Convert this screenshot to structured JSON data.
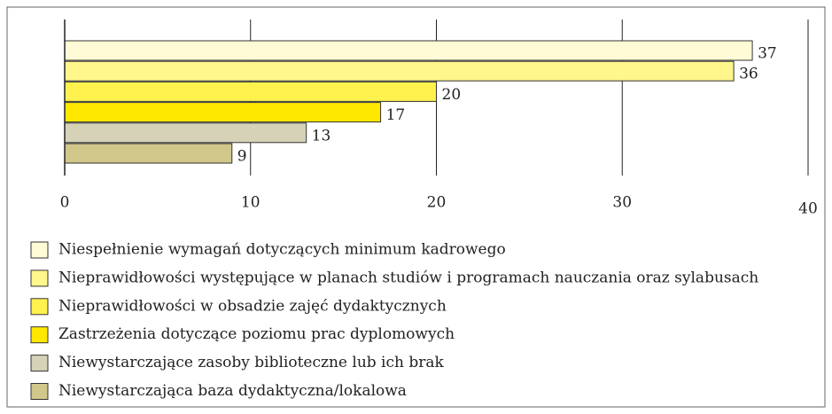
{
  "chart_data": {
    "type": "bar",
    "orientation": "horizontal",
    "categories": [
      "Niespełnienie wymagań dotyczących minimum kadrowego",
      "Nieprawidłowości występujące w planach studiów i programach nauczania oraz sylabusach",
      "Nieprawidłowości w obsadzie zajęć dydaktycznych",
      "Zastrzeżenia dotyczące poziomu prac dyplomowych",
      "Niewystarczające zasoby biblioteczne lub ich brak",
      "Niewystarczająca baza dydaktyczna/lokalowa"
    ],
    "values": [
      37,
      36,
      20,
      17,
      13,
      9
    ],
    "colors": [
      "#fffbd6",
      "#fff68c",
      "#fff24e",
      "#ffe800",
      "#d6d2b8",
      "#d2c78a"
    ],
    "xlim": [
      0,
      40
    ],
    "xticks": [
      0,
      10,
      20,
      30,
      40
    ],
    "grid": true
  }
}
